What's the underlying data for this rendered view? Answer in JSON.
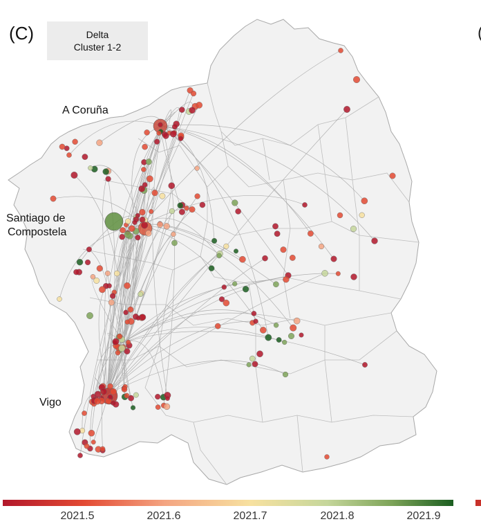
{
  "panel": {
    "label": "(C)",
    "title_line1": "Delta",
    "title_line2": "Cluster 1-2",
    "next_panel_glyph": "("
  },
  "cities": {
    "coruna": "A Coruña",
    "santiago_line1": "Santiago de",
    "santiago_line2": "Compostela",
    "vigo": "Vigo"
  },
  "colorbar": {
    "ticks": [
      "2021.5",
      "2021.6",
      "2021.7",
      "2021.8",
      "2021.9"
    ],
    "colors": [
      "#b2182b",
      "#e34a33",
      "#f4a582",
      "#f7e1a0",
      "#c5d69b",
      "#7fa55a",
      "#1b5e20"
    ]
  },
  "colors": {
    "land": "#f2f2f2",
    "border": "#b3b3b3",
    "lines": "#9a9a9a"
  }
}
